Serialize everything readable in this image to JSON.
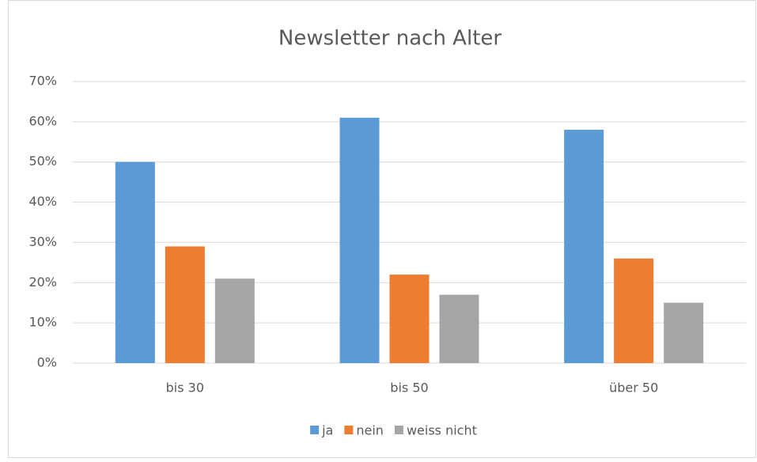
{
  "chart_data": {
    "type": "bar",
    "title": "Newsletter nach Alter",
    "categories": [
      "bis 30",
      "bis 50",
      "über 50"
    ],
    "series": [
      {
        "name": "ja",
        "color": "#5b9bd5",
        "values": [
          50,
          61,
          58
        ]
      },
      {
        "name": "nein",
        "color": "#ed7d31",
        "values": [
          29,
          22,
          26
        ]
      },
      {
        "name": "weiss nicht",
        "color": "#a5a5a5",
        "values": [
          21,
          17,
          15
        ]
      }
    ],
    "ylim": [
      0,
      70
    ],
    "yticks": [
      {
        "value": 0,
        "label": "0%"
      },
      {
        "value": 10,
        "label": "10%"
      },
      {
        "value": 20,
        "label": "20%"
      },
      {
        "value": 30,
        "label": "30%"
      },
      {
        "value": 40,
        "label": "40%"
      },
      {
        "value": 50,
        "label": "50%"
      },
      {
        "value": 60,
        "label": "60%"
      },
      {
        "value": 70,
        "label": "70%"
      }
    ],
    "grid": true,
    "legend": "bottom"
  }
}
